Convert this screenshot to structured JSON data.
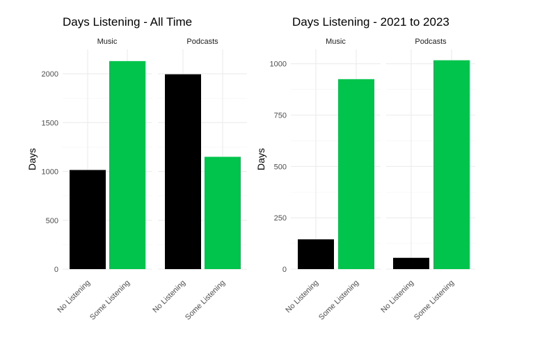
{
  "chart_data": [
    {
      "type": "bar",
      "title": "Days Listening - All Time",
      "ylabel": "Days",
      "xlabel": "",
      "ylim": [
        0,
        2250
      ],
      "yticks": [
        0,
        500,
        1000,
        1500,
        2000
      ],
      "grid": true,
      "legend": "none",
      "colors": {
        "No Listening": "#000000",
        "Some Listening": "#00c44c"
      },
      "facets": [
        {
          "name": "Music",
          "categories": [
            "No Listening",
            "Some Listening"
          ],
          "values": [
            1015,
            2130
          ]
        },
        {
          "name": "Podcasts",
          "categories": [
            "No Listening",
            "Some Listening"
          ],
          "values": [
            1995,
            1150
          ]
        }
      ]
    },
    {
      "type": "bar",
      "title": "Days Listening - 2021 to 2023",
      "ylabel": "Days",
      "xlabel": "",
      "ylim": [
        0,
        1070
      ],
      "yticks": [
        0,
        250,
        500,
        750,
        1000
      ],
      "grid": true,
      "legend": "none",
      "colors": {
        "No Listening": "#000000",
        "Some Listening": "#00c44c"
      },
      "facets": [
        {
          "name": "Music",
          "categories": [
            "No Listening",
            "Some Listening"
          ],
          "values": [
            145,
            925
          ]
        },
        {
          "name": "Podcasts",
          "categories": [
            "No Listening",
            "Some Listening"
          ],
          "values": [
            55,
            1017
          ]
        }
      ]
    }
  ]
}
